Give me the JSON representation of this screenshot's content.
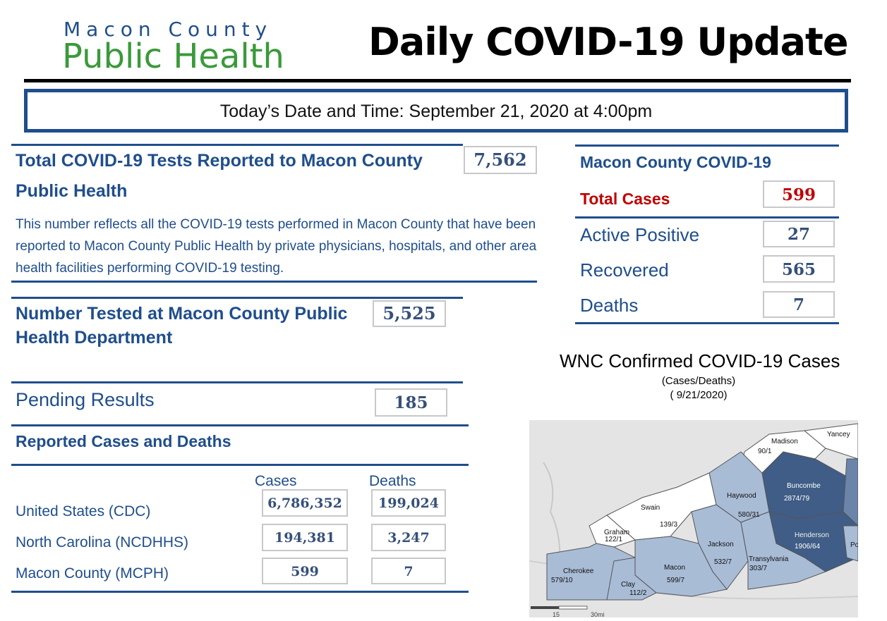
{
  "header": {
    "logo_line1": "Macon County",
    "logo_line2": "Public Health",
    "title": "Daily COVID-19 Update"
  },
  "date_bar": {
    "text": "Today’s Date and Time:  September 21, 2020 at 4:00pm"
  },
  "total_tests": {
    "title_line1": "Total COVID-19 Tests Reported to Macon County",
    "title_line2": "Public Health",
    "value": "7,562",
    "description": "This number reflects all the COVID-19 tests performed in Macon County that have been reported to Macon County Public Health by private physicians, hospitals, and other area health facilities performing COVID-19 testing."
  },
  "tested_at_mcph": {
    "title_line1": "Number Tested at Macon County Public",
    "title_line2": "Health Department",
    "value": "5,525"
  },
  "pending": {
    "label": "Pending Results",
    "value": "185"
  },
  "reported": {
    "title": "Reported Cases and Deaths",
    "col_cases": "Cases",
    "col_deaths": "Deaths",
    "rows": [
      {
        "label": "United States (CDC)",
        "cases": "6,786,352",
        "deaths": "199,024"
      },
      {
        "label": "North Carolina (NCDHHS)",
        "cases": "194,381",
        "deaths": "3,247"
      },
      {
        "label": "Macon County (MCPH)",
        "cases": "599",
        "deaths": "7"
      }
    ]
  },
  "county_summary": {
    "title": "Macon County COVID-19",
    "total_label": "Total Cases",
    "total_value": "599",
    "active_label": "Active Positive",
    "active_value": "27",
    "recovered_label": "Recovered",
    "recovered_value": "565",
    "deaths_label": "Deaths",
    "deaths_value": "7"
  },
  "map": {
    "title": "WNC Confirmed COVID-19 Cases",
    "subtitle1": "(Cases/Deaths)",
    "subtitle2": "( 9/21/2020)",
    "counties": [
      {
        "name": "Madison",
        "value": "90/1"
      },
      {
        "name": "Yancey",
        "value": ""
      },
      {
        "name": "Haywood",
        "value": "580/31"
      },
      {
        "name": "Buncombe",
        "value": "2874/79"
      },
      {
        "name": "Swain",
        "value": "139/3"
      },
      {
        "name": "Graham",
        "value": "122/1"
      },
      {
        "name": "Henderson",
        "value": "1906/64"
      },
      {
        "name": "Jackson",
        "value": "532/7"
      },
      {
        "name": "Transylvania",
        "value": "303/7"
      },
      {
        "name": "Cherokee",
        "value": "579/10"
      },
      {
        "name": "Macon",
        "value": "599/7"
      },
      {
        "name": "Clay",
        "value": "112/2"
      },
      {
        "name": "Po",
        "value": ""
      }
    ],
    "scale_15": "15",
    "scale_30": "30mi"
  },
  "colors": {
    "primary_blue": "#1f4e8c",
    "green": "#3a9a3a",
    "red": "#c00000"
  }
}
